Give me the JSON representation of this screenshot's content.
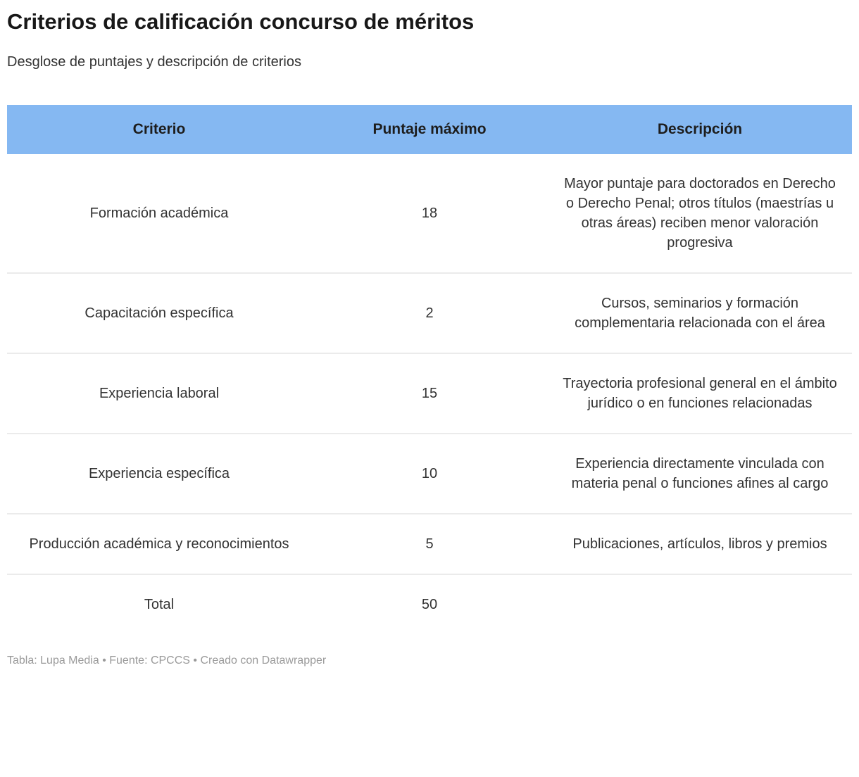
{
  "chart_data": {
    "type": "table",
    "title": "Criterios de calificación concurso de méritos",
    "subtitle": "Desglose de puntajes y descripción de criterios",
    "columns": [
      "Criterio",
      "Puntaje máximo",
      "Descripción"
    ],
    "rows": [
      {
        "criterio": "Formación académica",
        "puntaje": 18,
        "descripcion": "Mayor puntaje para doctorados en Derecho o Derecho Penal; otros títulos (maestrías u otras áreas) reciben menor valoración progresiva"
      },
      {
        "criterio": "Capacitación específica",
        "puntaje": 2,
        "descripcion": "Cursos, seminarios y formación complementaria relacionada con el área"
      },
      {
        "criterio": "Experiencia laboral",
        "puntaje": 15,
        "descripcion": "Trayectoria profesional general en el ámbito jurídico o en funciones relacionadas"
      },
      {
        "criterio": "Experiencia específica",
        "puntaje": 10,
        "descripcion": "Experiencia directamente vinculada con materia penal o funciones afines al cargo"
      },
      {
        "criterio": "Producción académica y reconocimientos",
        "puntaje": 5,
        "descripcion": "Publicaciones, artículos, libros y premios"
      },
      {
        "criterio": "Total",
        "puntaje": 50,
        "descripcion": ""
      }
    ],
    "footer": "Tabla: Lupa Media • Fuente: CPCCS • Creado con Datawrapper",
    "layout_hints": {
      "header_background": "#85b8f2",
      "divider_color": "#ebebeb",
      "title_color": "#181818",
      "body_text_color": "#333333",
      "footer_text_color": "#9a9a9a",
      "alignment": "center"
    }
  }
}
